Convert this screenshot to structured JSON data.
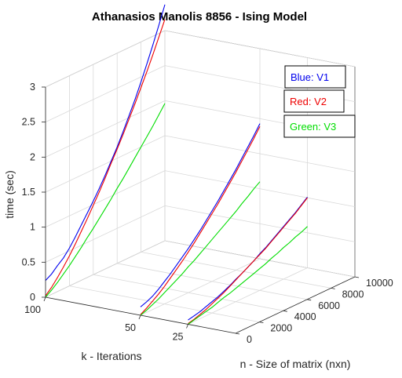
{
  "chart_data": {
    "type": "line",
    "projection": "3d",
    "title": "Athanasios Manolis 8856 - Ising Model",
    "xlabel": "n - Size of matrix (nxn)",
    "ylabel": "k - Iterations",
    "zlabel": "time (sec)",
    "x_ticks": [
      "0",
      "2000",
      "4000",
      "6000",
      "8000",
      "10000"
    ],
    "y_ticks": [
      "25",
      "50",
      "100"
    ],
    "z_ticks": [
      "0",
      "0.5",
      "1",
      "1.5",
      "2",
      "2.5",
      "3"
    ],
    "xlim": [
      0,
      10000
    ],
    "ylim": [
      0,
      100
    ],
    "zlim": [
      0,
      3
    ],
    "grid": true,
    "legend_placement": "top-right",
    "x": [
      0,
      500,
      1000,
      1500,
      2000,
      2500,
      3000,
      3500,
      4000,
      4500,
      5000,
      5500,
      6000,
      6500,
      7000,
      7500,
      8000,
      8500,
      9000,
      9500,
      10000
    ],
    "series": [
      {
        "name": "Blue: V1",
        "color": "#0000ee",
        "traces": [
          {
            "k": 100,
            "values": [
              0.24,
              0.29,
              0.37,
              0.44,
              0.54,
              0.66,
              0.79,
              0.92,
              1.05,
              1.19,
              1.34,
              1.5,
              1.66,
              1.84,
              2.03,
              2.22,
              2.43,
              2.65,
              2.88,
              3.12,
              3.37
            ]
          },
          {
            "k": 50,
            "values": [
              0.12,
              0.15,
              0.19,
              0.25,
              0.32,
              0.39,
              0.47,
              0.55,
              0.63,
              0.72,
              0.81,
              0.91,
              1.01,
              1.11,
              1.22,
              1.33,
              1.44,
              1.56,
              1.68,
              1.8,
              1.93
            ]
          },
          {
            "k": 25,
            "values": [
              0.06,
              0.08,
              0.1,
              0.13,
              0.16,
              0.19,
              0.23,
              0.27,
              0.32,
              0.36,
              0.41,
              0.46,
              0.52,
              0.57,
              0.63,
              0.69,
              0.75,
              0.81,
              0.87,
              0.94,
              1.01
            ]
          }
        ]
      },
      {
        "name": "Red: V2",
        "color": "#ee0000",
        "traces": [
          {
            "k": 100,
            "values": [
              0.02,
              0.1,
              0.2,
              0.31,
              0.43,
              0.56,
              0.7,
              0.84,
              0.99,
              1.14,
              1.3,
              1.47,
              1.63,
              1.8,
              1.98,
              2.16,
              2.35,
              2.54,
              2.74,
              2.95,
              3.16
            ]
          },
          {
            "k": 50,
            "values": [
              0.01,
              0.06,
              0.12,
              0.18,
              0.25,
              0.33,
              0.41,
              0.49,
              0.58,
              0.67,
              0.77,
              0.87,
              0.97,
              1.07,
              1.18,
              1.29,
              1.4,
              1.52,
              1.64,
              1.76,
              1.89
            ]
          },
          {
            "k": 25,
            "values": [
              0.01,
              0.03,
              0.06,
              0.09,
              0.13,
              0.17,
              0.21,
              0.26,
              0.31,
              0.36,
              0.41,
              0.46,
              0.51,
              0.56,
              0.62,
              0.68,
              0.74,
              0.8,
              0.86,
              0.93,
              1.0
            ]
          }
        ]
      },
      {
        "name": "Green: V3",
        "color": "#00dd00",
        "traces": [
          {
            "k": 100,
            "values": [
              0.0,
              0.06,
              0.13,
              0.21,
              0.29,
              0.38,
              0.47,
              0.57,
              0.66,
              0.76,
              0.86,
              0.96,
              1.07,
              1.17,
              1.28,
              1.39,
              1.5,
              1.61,
              1.72,
              1.84,
              1.96
            ]
          },
          {
            "k": 50,
            "values": [
              0.0,
              0.03,
              0.07,
              0.11,
              0.16,
              0.21,
              0.26,
              0.31,
              0.37,
              0.42,
              0.48,
              0.54,
              0.6,
              0.66,
              0.72,
              0.78,
              0.84,
              0.91,
              0.97,
              1.04,
              1.1
            ]
          },
          {
            "k": 25,
            "values": [
              0.0,
              0.02,
              0.04,
              0.06,
              0.08,
              0.11,
              0.14,
              0.16,
              0.19,
              0.22,
              0.25,
              0.28,
              0.31,
              0.34,
              0.38,
              0.41,
              0.45,
              0.48,
              0.52,
              0.55,
              0.59
            ]
          }
        ]
      }
    ]
  }
}
